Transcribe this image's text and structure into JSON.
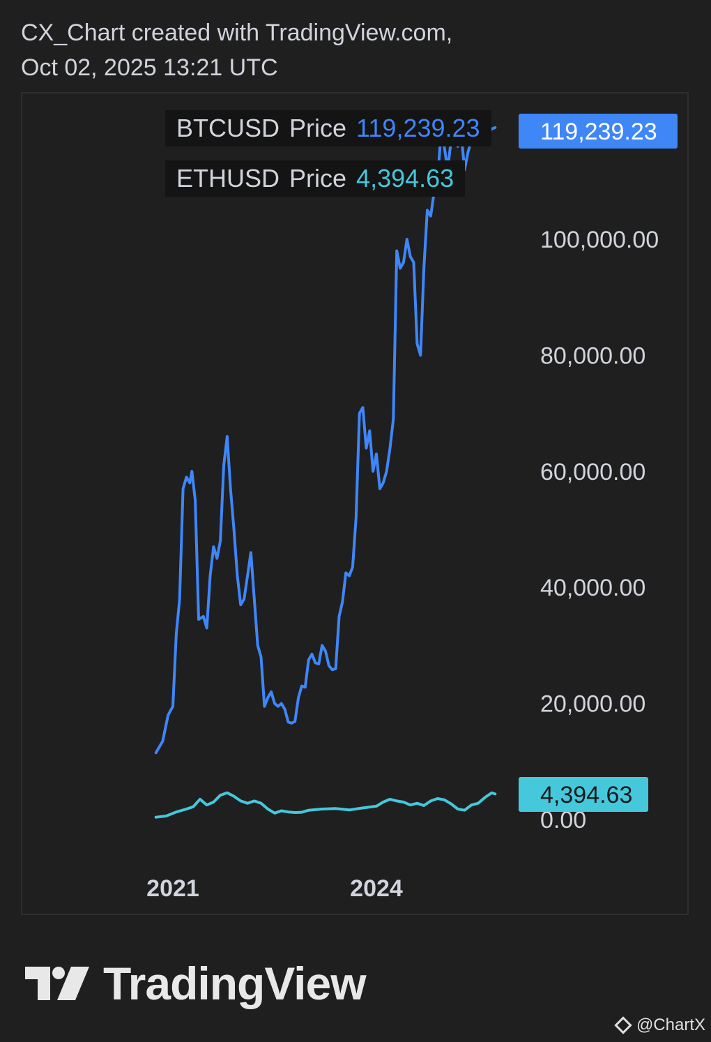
{
  "header": {
    "line1": "CX_Chart created with TradingView.com,",
    "line2": "Oct 02, 2025 13:21 UTC"
  },
  "legend": [
    {
      "symbol": "BTCUSD",
      "label": "Price",
      "value": "119,239.23",
      "color": "#3f86f7"
    },
    {
      "symbol": "ETHUSD",
      "label": "Price",
      "value": "4,394.63",
      "color": "#45c8dc"
    }
  ],
  "branding": {
    "logo_text": "TradingView",
    "watermark": "@ChartX"
  },
  "chart_data": {
    "type": "line",
    "y_ticks": [
      "0.00",
      "20,000.00",
      "40,000.00",
      "60,000.00",
      "80,000.00",
      "100,000.00"
    ],
    "y_tick_values": [
      0,
      20000,
      40000,
      60000,
      80000,
      100000
    ],
    "x_ticks": [
      "2021",
      "2024"
    ],
    "x_tick_values": [
      2021.0,
      2024.0
    ],
    "ylim": [
      0,
      122000
    ],
    "xlim": [
      2019.0,
      2026.3
    ],
    "price_labels": [
      {
        "text": "119,239.23",
        "value": 119239.23,
        "color": "#3f86f7"
      },
      {
        "text": "4,394.63",
        "value": 4394.63,
        "color": "#45c8dc"
      }
    ],
    "series": [
      {
        "name": "BTCUSD",
        "color": "#3f86f7",
        "x": [
          2020.75,
          2020.85,
          2020.93,
          2021.0,
          2021.05,
          2021.1,
          2021.15,
          2021.2,
          2021.25,
          2021.28,
          2021.33,
          2021.38,
          2021.45,
          2021.5,
          2021.55,
          2021.6,
          2021.65,
          2021.7,
          2021.75,
          2021.8,
          2021.85,
          2021.9,
          2021.95,
          2022.0,
          2022.05,
          2022.1,
          2022.15,
          2022.2,
          2022.25,
          2022.3,
          2022.35,
          2022.4,
          2022.45,
          2022.5,
          2022.55,
          2022.6,
          2022.65,
          2022.7,
          2022.75,
          2022.8,
          2022.85,
          2022.9,
          2022.95,
          2023.0,
          2023.05,
          2023.1,
          2023.15,
          2023.2,
          2023.25,
          2023.3,
          2023.35,
          2023.4,
          2023.45,
          2023.5,
          2023.55,
          2023.6,
          2023.65,
          2023.7,
          2023.75,
          2023.8,
          2023.85,
          2023.9,
          2023.95,
          2024.0,
          2024.05,
          2024.1,
          2024.15,
          2024.2,
          2024.25,
          2024.3,
          2024.35,
          2024.4,
          2024.45,
          2024.5,
          2024.55,
          2024.6,
          2024.65,
          2024.7,
          2024.75,
          2024.8,
          2024.85,
          2024.9,
          2024.95,
          2025.0,
          2025.05,
          2025.1,
          2025.15,
          2025.2,
          2025.25,
          2025.3,
          2025.35,
          2025.4,
          2025.45,
          2025.5,
          2025.55,
          2025.6,
          2025.65,
          2025.7,
          2025.75
        ],
        "values": [
          11500,
          13500,
          18000,
          19500,
          32000,
          38000,
          57000,
          59000,
          58000,
          60000,
          55000,
          34500,
          35000,
          33000,
          42000,
          47000,
          45000,
          48000,
          61000,
          66000,
          57000,
          50000,
          42000,
          37000,
          38000,
          42000,
          46000,
          38000,
          30000,
          28000,
          19500,
          21000,
          22000,
          20000,
          19500,
          20000,
          19000,
          16800,
          16600,
          16900,
          21000,
          23000,
          22800,
          27500,
          28500,
          27000,
          26800,
          30000,
          29000,
          26500,
          25800,
          26000,
          35000,
          37500,
          42500,
          42000,
          43500,
          52000,
          70000,
          71000,
          64000,
          67000,
          60000,
          63000,
          57000,
          58000,
          60000,
          64000,
          69000,
          98000,
          95000,
          96000,
          100000,
          97000,
          96000,
          82000,
          80000,
          95000,
          105000,
          104000,
          108000,
          110000,
          118000,
          116000,
          112000,
          117000,
          119239.23,
          116000,
          118000,
          112000,
          115000,
          117000,
          119239.23,
          118000,
          117500,
          119000,
          118500,
          119000,
          119239.23
        ]
      },
      {
        "name": "ETHUSD",
        "color": "#45c8dc",
        "x": [
          2020.75,
          2020.9,
          2021.05,
          2021.2,
          2021.3,
          2021.4,
          2021.5,
          2021.6,
          2021.7,
          2021.8,
          2021.9,
          2022.0,
          2022.1,
          2022.2,
          2022.3,
          2022.4,
          2022.5,
          2022.6,
          2022.7,
          2022.8,
          2022.9,
          2023.0,
          2023.2,
          2023.4,
          2023.6,
          2023.8,
          2024.0,
          2024.1,
          2024.2,
          2024.3,
          2024.4,
          2024.5,
          2024.6,
          2024.7,
          2024.8,
          2024.9,
          2025.0,
          2025.1,
          2025.2,
          2025.3,
          2025.4,
          2025.5,
          2025.6,
          2025.7,
          2025.75
        ],
        "values": [
          400,
          600,
          1300,
          1800,
          2200,
          3500,
          2500,
          3000,
          4200,
          4600,
          4000,
          3200,
          2800,
          3200,
          2800,
          1800,
          1100,
          1500,
          1300,
          1200,
          1250,
          1600,
          1800,
          1900,
          1650,
          2000,
          2300,
          3000,
          3500,
          3200,
          3000,
          2500,
          2800,
          2400,
          3200,
          3600,
          3400,
          2700,
          1800,
          1600,
          2500,
          2800,
          3800,
          4600,
          4394.63
        ]
      }
    ]
  }
}
